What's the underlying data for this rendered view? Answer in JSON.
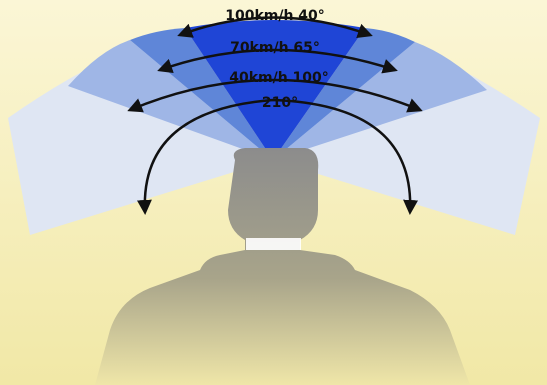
{
  "labels": {
    "speed_100": "100km/h 40°",
    "speed_70": "70km/h 65°",
    "speed_40": "40km/h 100°",
    "full": "210°"
  },
  "colors": {
    "background_top": "#fbf6d6",
    "background_bottom": "#f1e8a6",
    "zone_100": "#1f45d6",
    "zone_70": "#5f86d8",
    "zone_40": "#9fb6e6",
    "zone_210": "#dfe6f3",
    "silhouette": "#8a8a8a",
    "arrow": "#111111"
  }
}
